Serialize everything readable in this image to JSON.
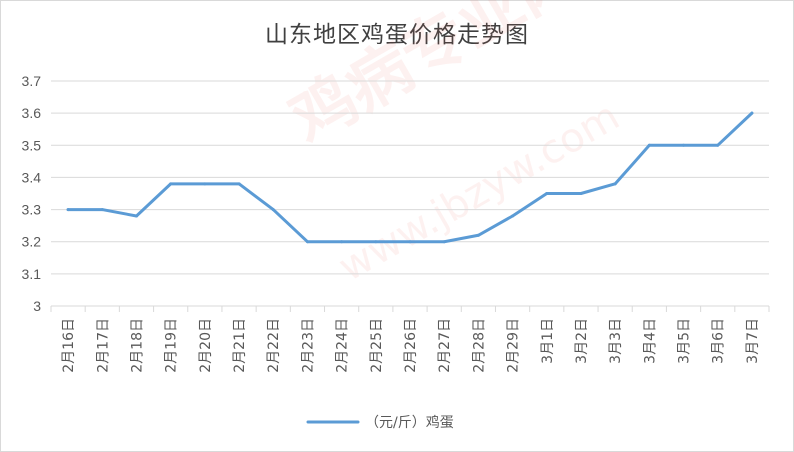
{
  "chart_data": {
    "type": "line",
    "title": "山东地区鸡蛋价格走势图",
    "xlabel": "",
    "ylabel": "",
    "categories": [
      "2月16日",
      "2月17日",
      "2月18日",
      "2月19日",
      "2月20日",
      "2月21日",
      "2月22日",
      "2月23日",
      "2月24日",
      "2月25日",
      "2月26日",
      "2月27日",
      "2月28日",
      "2月29日",
      "3月1日",
      "3月2日",
      "3月3日",
      "3月4日",
      "3月5日",
      "3月6日",
      "3月7日"
    ],
    "series": [
      {
        "name": "（元/斤）鸡蛋",
        "color": "#5b9bd5",
        "values": [
          3.3,
          3.3,
          3.28,
          3.38,
          3.38,
          3.38,
          3.3,
          3.2,
          3.2,
          3.2,
          3.2,
          3.2,
          3.22,
          3.28,
          3.35,
          3.35,
          3.38,
          3.5,
          3.5,
          3.5,
          3.6
        ]
      }
    ],
    "yticks": [
      "3",
      "3.1",
      "3.2",
      "3.3",
      "3.4",
      "3.5",
      "3.6",
      "3.7"
    ],
    "ylim": [
      3.0,
      3.7
    ],
    "grid": true,
    "legend_position": "bottom"
  },
  "watermark": {
    "text": "鸡病专业网",
    "url": "www.jbzyw.com"
  }
}
